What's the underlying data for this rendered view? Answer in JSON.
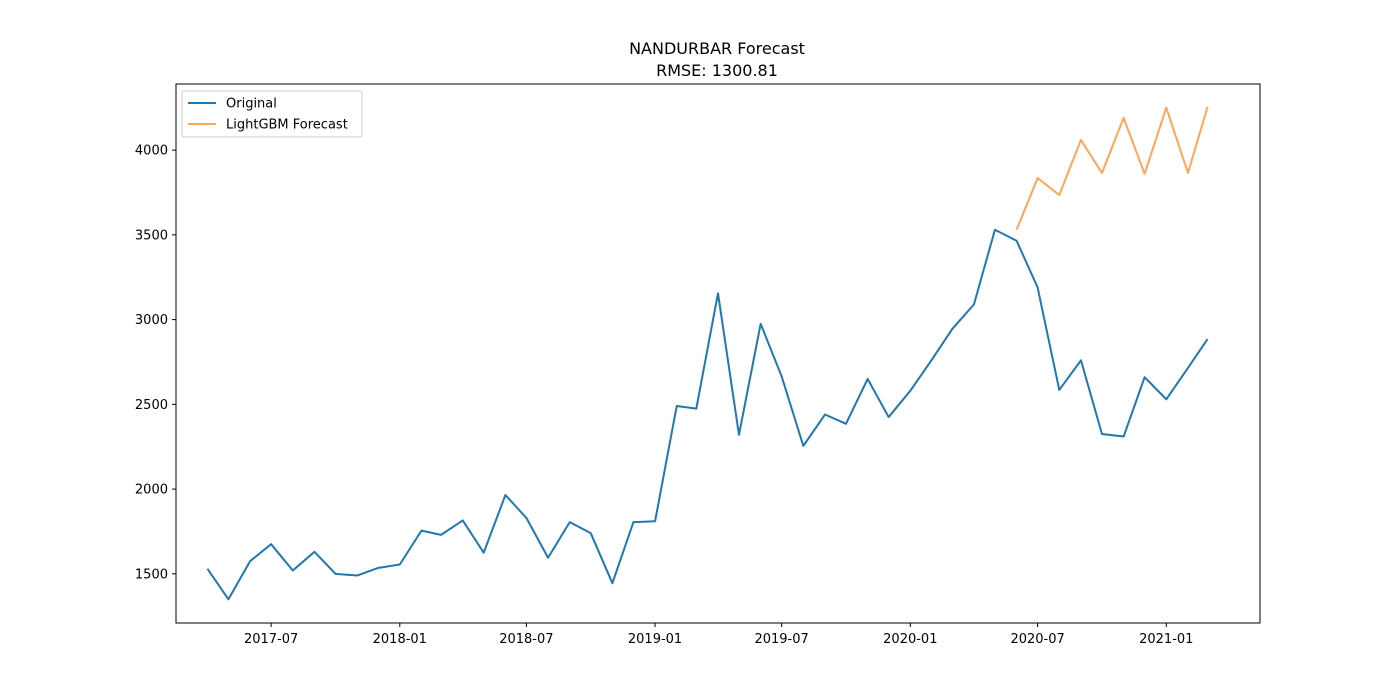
{
  "chart_data": {
    "type": "line",
    "title": "NANDURBAR Forecast",
    "subtitle": "RMSE: 1300.81",
    "xlabel": "",
    "ylabel": "",
    "ylim": [
      1210,
      4390
    ],
    "xlim": [
      "2017-02-15",
      "2021-05-15"
    ],
    "yticks": [
      1500,
      2000,
      2500,
      3000,
      3500,
      4000
    ],
    "xticks": [
      {
        "date": "2017-07-01",
        "label": "2017-07"
      },
      {
        "date": "2018-01-01",
        "label": "2018-01"
      },
      {
        "date": "2018-07-01",
        "label": "2018-07"
      },
      {
        "date": "2019-01-01",
        "label": "2019-01"
      },
      {
        "date": "2019-07-01",
        "label": "2019-07"
      },
      {
        "date": "2020-01-01",
        "label": "2020-01"
      },
      {
        "date": "2020-07-01",
        "label": "2020-07"
      },
      {
        "date": "2021-01-01",
        "label": "2021-01"
      }
    ],
    "grid": false,
    "legend_position": "top-left",
    "series": [
      {
        "name": "Original",
        "color": "#1f77b4",
        "x": [
          "2017-04-01",
          "2017-05-01",
          "2017-06-01",
          "2017-07-01",
          "2017-08-01",
          "2017-09-01",
          "2017-10-01",
          "2017-11-01",
          "2017-12-01",
          "2018-01-01",
          "2018-02-01",
          "2018-03-01",
          "2018-04-01",
          "2018-05-01",
          "2018-06-01",
          "2018-07-01",
          "2018-08-01",
          "2018-09-01",
          "2018-10-01",
          "2018-11-01",
          "2018-12-01",
          "2019-01-01",
          "2019-02-01",
          "2019-03-01",
          "2019-04-01",
          "2019-05-01",
          "2019-06-01",
          "2019-07-01",
          "2019-08-01",
          "2019-09-01",
          "2019-10-01",
          "2019-11-01",
          "2019-12-01",
          "2020-01-01",
          "2020-02-01",
          "2020-03-01",
          "2020-04-01",
          "2020-05-01",
          "2020-06-01",
          "2020-07-01",
          "2020-08-01",
          "2020-09-01",
          "2020-10-01",
          "2020-11-01",
          "2020-12-01",
          "2021-01-01",
          "2021-02-01",
          "2021-03-01"
        ],
        "values": [
          1530,
          1350,
          1575,
          1675,
          1520,
          1630,
          1500,
          1490,
          1535,
          1555,
          1755,
          1730,
          1815,
          1625,
          1965,
          1830,
          1595,
          1805,
          1740,
          1445,
          1805,
          1810,
          2490,
          2475,
          3155,
          2320,
          2975,
          2665,
          2255,
          2440,
          2385,
          2650,
          2425,
          2580,
          2765,
          2945,
          3090,
          3530,
          3465,
          3190,
          2585,
          2760,
          2325,
          2310,
          2660,
          2530,
          2715,
          2885
        ]
      },
      {
        "name": "LightGBM Forecast",
        "color": "#ff7f0e",
        "x": [
          "2020-06-01",
          "2020-07-01",
          "2020-08-01",
          "2020-09-01",
          "2020-10-01",
          "2020-11-01",
          "2020-12-01",
          "2021-01-01",
          "2021-02-01",
          "2021-03-01"
        ],
        "values": [
          3530,
          3835,
          3735,
          4060,
          3865,
          4190,
          3860,
          4250,
          3865,
          4255
        ]
      }
    ]
  }
}
